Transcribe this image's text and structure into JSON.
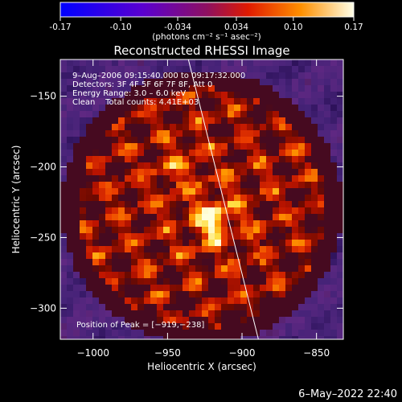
{
  "colorbar": {
    "tick_labels": [
      "-0.17",
      "-0.10",
      "-0.034",
      "0.034",
      "0.10",
      "0.17"
    ],
    "tick_values": [
      -0.17,
      -0.1,
      -0.034,
      0.034,
      0.1,
      0.17
    ],
    "range": [
      -0.17,
      0.17
    ],
    "units_label": "(photons cm⁻² s⁻¹ asec⁻²)"
  },
  "chart_data": {
    "type": "heatmap",
    "title": "Reconstructed RHESSI Image",
    "xlabel": "Heliocentric X (arcsec)",
    "ylabel": "Heliocentric Y (arcsec)",
    "xlim": [
      -1022,
      -832
    ],
    "ylim": [
      -322,
      -124
    ],
    "x_ticks": [
      -1000,
      -950,
      -900,
      -850
    ],
    "x_tick_labels": [
      "−1000",
      "−950",
      "−900",
      "−850"
    ],
    "y_ticks": [
      -150,
      -200,
      -250,
      -300
    ],
    "y_tick_labels": [
      "−150",
      "−200",
      "−250",
      "−300"
    ],
    "peak_position": [
      -919,
      -238
    ],
    "annotations": [
      "9–Aug–2006 09:15:40.000 to 09:17:32.000",
      "Detectors: 3F 4F 5F 6F 7F 8F, Att 0",
      "Energy Range: 3.0 – 6.0 keV",
      "Clean    Total counts: 4.41E+03"
    ],
    "peak_label": "Position of Peak = [−919,−238]",
    "limb_line": {
      "x": [
        -936,
        -889
      ],
      "y": [
        -124,
        -322
      ]
    }
  },
  "footer": {
    "timestamp": "6–May–2022 22:40"
  }
}
